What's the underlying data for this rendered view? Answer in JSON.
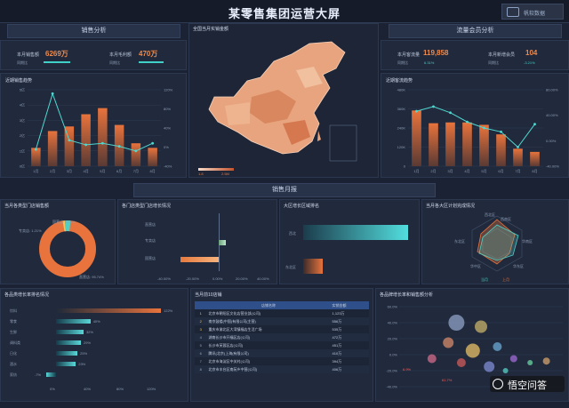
{
  "header": {
    "title": "某零售集团运营大屏",
    "logo_text": "帆软数据"
  },
  "sections": {
    "sales": "销售分析",
    "traffic": "流量会员分析",
    "monthly": "销售月报"
  },
  "kpis": [
    {
      "label": "本月销售额",
      "value": "6269万",
      "sub_label": "同期比"
    },
    {
      "label": "本月毛利额",
      "value": "470万",
      "sub_label": "同期比"
    },
    {
      "label": "本月客流量",
      "value": "119,858",
      "sub_label": "同期比",
      "change": "6.31%"
    },
    {
      "label": "本月新增会员",
      "value": "104",
      "sub_label": "同期比",
      "change": "-3.21%"
    }
  ],
  "map": {
    "title": "全国当月实销金额",
    "legend_min": "1.8",
    "legend_max": "2.5M"
  },
  "sales_trend": {
    "title": "近期销售趋势",
    "y_left": [
      "0亿",
      "1亿",
      "2亿",
      "3亿",
      "4亿",
      "5亿"
    ],
    "y_right": [
      "-40%",
      "0%",
      "40%",
      "80%",
      "120%"
    ],
    "categories": [
      "1月",
      "2月",
      "3月",
      "4月",
      "5月",
      "6月",
      "7月",
      "8月"
    ],
    "bars": [
      1.2,
      2.3,
      2.6,
      3.4,
      3.8,
      2.7,
      1.5,
      1.2
    ],
    "line": [
      0.22,
      0.95,
      0.34,
      0.28,
      0.3,
      0.26,
      0.2,
      0.3
    ]
  },
  "traffic_trend": {
    "title": "近期客流趋势",
    "y_left": [
      "0",
      "120K",
      "240K",
      "360K",
      "480K"
    ],
    "y_right": [
      "-40.00%",
      "0.00%",
      "40.00%",
      "80.00%"
    ],
    "categories": [
      "1月",
      "2月",
      "3月",
      "4月",
      "5月",
      "6月",
      "7月",
      "8月"
    ],
    "bars": [
      350,
      270,
      275,
      275,
      260,
      200,
      110,
      90
    ],
    "line": [
      0.72,
      0.78,
      0.7,
      0.58,
      0.5,
      0.45,
      0.25,
      0.55
    ]
  },
  "donut": {
    "title": "当月各类型门店销售额",
    "labels": [
      {
        "text": "国营店: 3.05%"
      },
      {
        "text": "专卖店: 1.21%"
      },
      {
        "text": "直营店: 95.74%"
      }
    ],
    "values": [
      3.05,
      1.21,
      95.74
    ]
  },
  "growth": {
    "title": "各门店类型门店增长情况",
    "rows": [
      "直营店",
      "专卖店",
      "国营店"
    ],
    "values": [
      45,
      -10,
      -30
    ],
    "ticks": [
      "-40.00%",
      "-20.00%",
      "0.00%",
      "20.00%",
      "40.00%"
    ]
  },
  "region": {
    "title": "大区增长区域排名",
    "rows": [
      "西北",
      "东北区"
    ],
    "values": [
      100,
      18
    ]
  },
  "radar": {
    "title": "当月各大区计划完成情况",
    "axes": [
      "西南区",
      "华南区",
      "华东区",
      "华中区",
      "东北区",
      "西北区"
    ],
    "legend": [
      "当月",
      "上月"
    ]
  },
  "category_growth": {
    "title": "各品类增长率排名情况",
    "rows": [
      {
        "label": "饮料",
        "value": "122%"
      },
      {
        "label": "零食",
        "value": "40%"
      },
      {
        "label": "生鲜",
        "value": "32%"
      },
      {
        "label": "调料类",
        "value": "29%"
      },
      {
        "label": "日化",
        "value": "25%"
      },
      {
        "label": "酒水",
        "value": "23%"
      },
      {
        "label": "家纺",
        "value": "-7%"
      }
    ],
    "nums": [
      122,
      40,
      32,
      29,
      25,
      23,
      -7
    ],
    "ticks": [
      "0%",
      "40%",
      "80%",
      "120%"
    ]
  },
  "top10": {
    "title": "当月前10店铺",
    "col_name": "店铺名称",
    "col_value": "实销金额",
    "rows": [
      {
        "rank": "1",
        "name": "北京市朝阳区文化店营业部(公司)",
        "value": "1,123万"
      },
      {
        "rank": "2",
        "name": "南京鼓楼(中国)有限公司(主营)",
        "value": "556万"
      },
      {
        "rank": "3",
        "name": "重庆市渝北区大湾镇福店生活广场",
        "value": "535万"
      },
      {
        "rank": "4",
        "name": "湖南长沙市开福区店(公司)",
        "value": "472万"
      },
      {
        "rank": "5",
        "name": "长沙市芙蓉区店(公司)",
        "value": "451万"
      },
      {
        "rank": "6",
        "name": "腾讯(北京)上海(有限公司)",
        "value": "410万"
      },
      {
        "rank": "7",
        "name": "北京市海淀区中关村(公司)",
        "value": "394万"
      },
      {
        "rank": "8",
        "name": "北京市丰台区南苑乡中营(公司)",
        "value": "406万"
      }
    ]
  },
  "scatter": {
    "title": "各品牌增长率和销售额分析",
    "y_ticks": [
      "60.0%",
      "40.0%",
      "20.0%",
      "0.0%",
      "-20.0%",
      "-40.0%"
    ],
    "annotations": [
      "6.9%",
      "61.7%"
    ],
    "points": [
      [
        0.35,
        0.8,
        9,
        "#8fa2c6"
      ],
      [
        0.5,
        0.75,
        7,
        "#c7b36a"
      ],
      [
        0.3,
        0.55,
        6,
        "#d48a6a"
      ],
      [
        0.6,
        0.5,
        5,
        "#6aa8d4"
      ],
      [
        0.45,
        0.45,
        8,
        "#e7c067"
      ],
      [
        0.7,
        0.35,
        4,
        "#a06bd4"
      ],
      [
        0.2,
        0.35,
        5,
        "#d46b8a"
      ],
      [
        0.8,
        0.3,
        3,
        "#6bd4a6"
      ],
      [
        0.9,
        0.32,
        4,
        "#d4a36b"
      ],
      [
        0.55,
        0.25,
        6,
        "#7f8cd4"
      ],
      [
        0.38,
        0.3,
        5,
        "#cf5b5b"
      ],
      [
        0.65,
        0.2,
        3,
        "#5bcfc4"
      ]
    ]
  },
  "watermark": "悟空问答"
}
